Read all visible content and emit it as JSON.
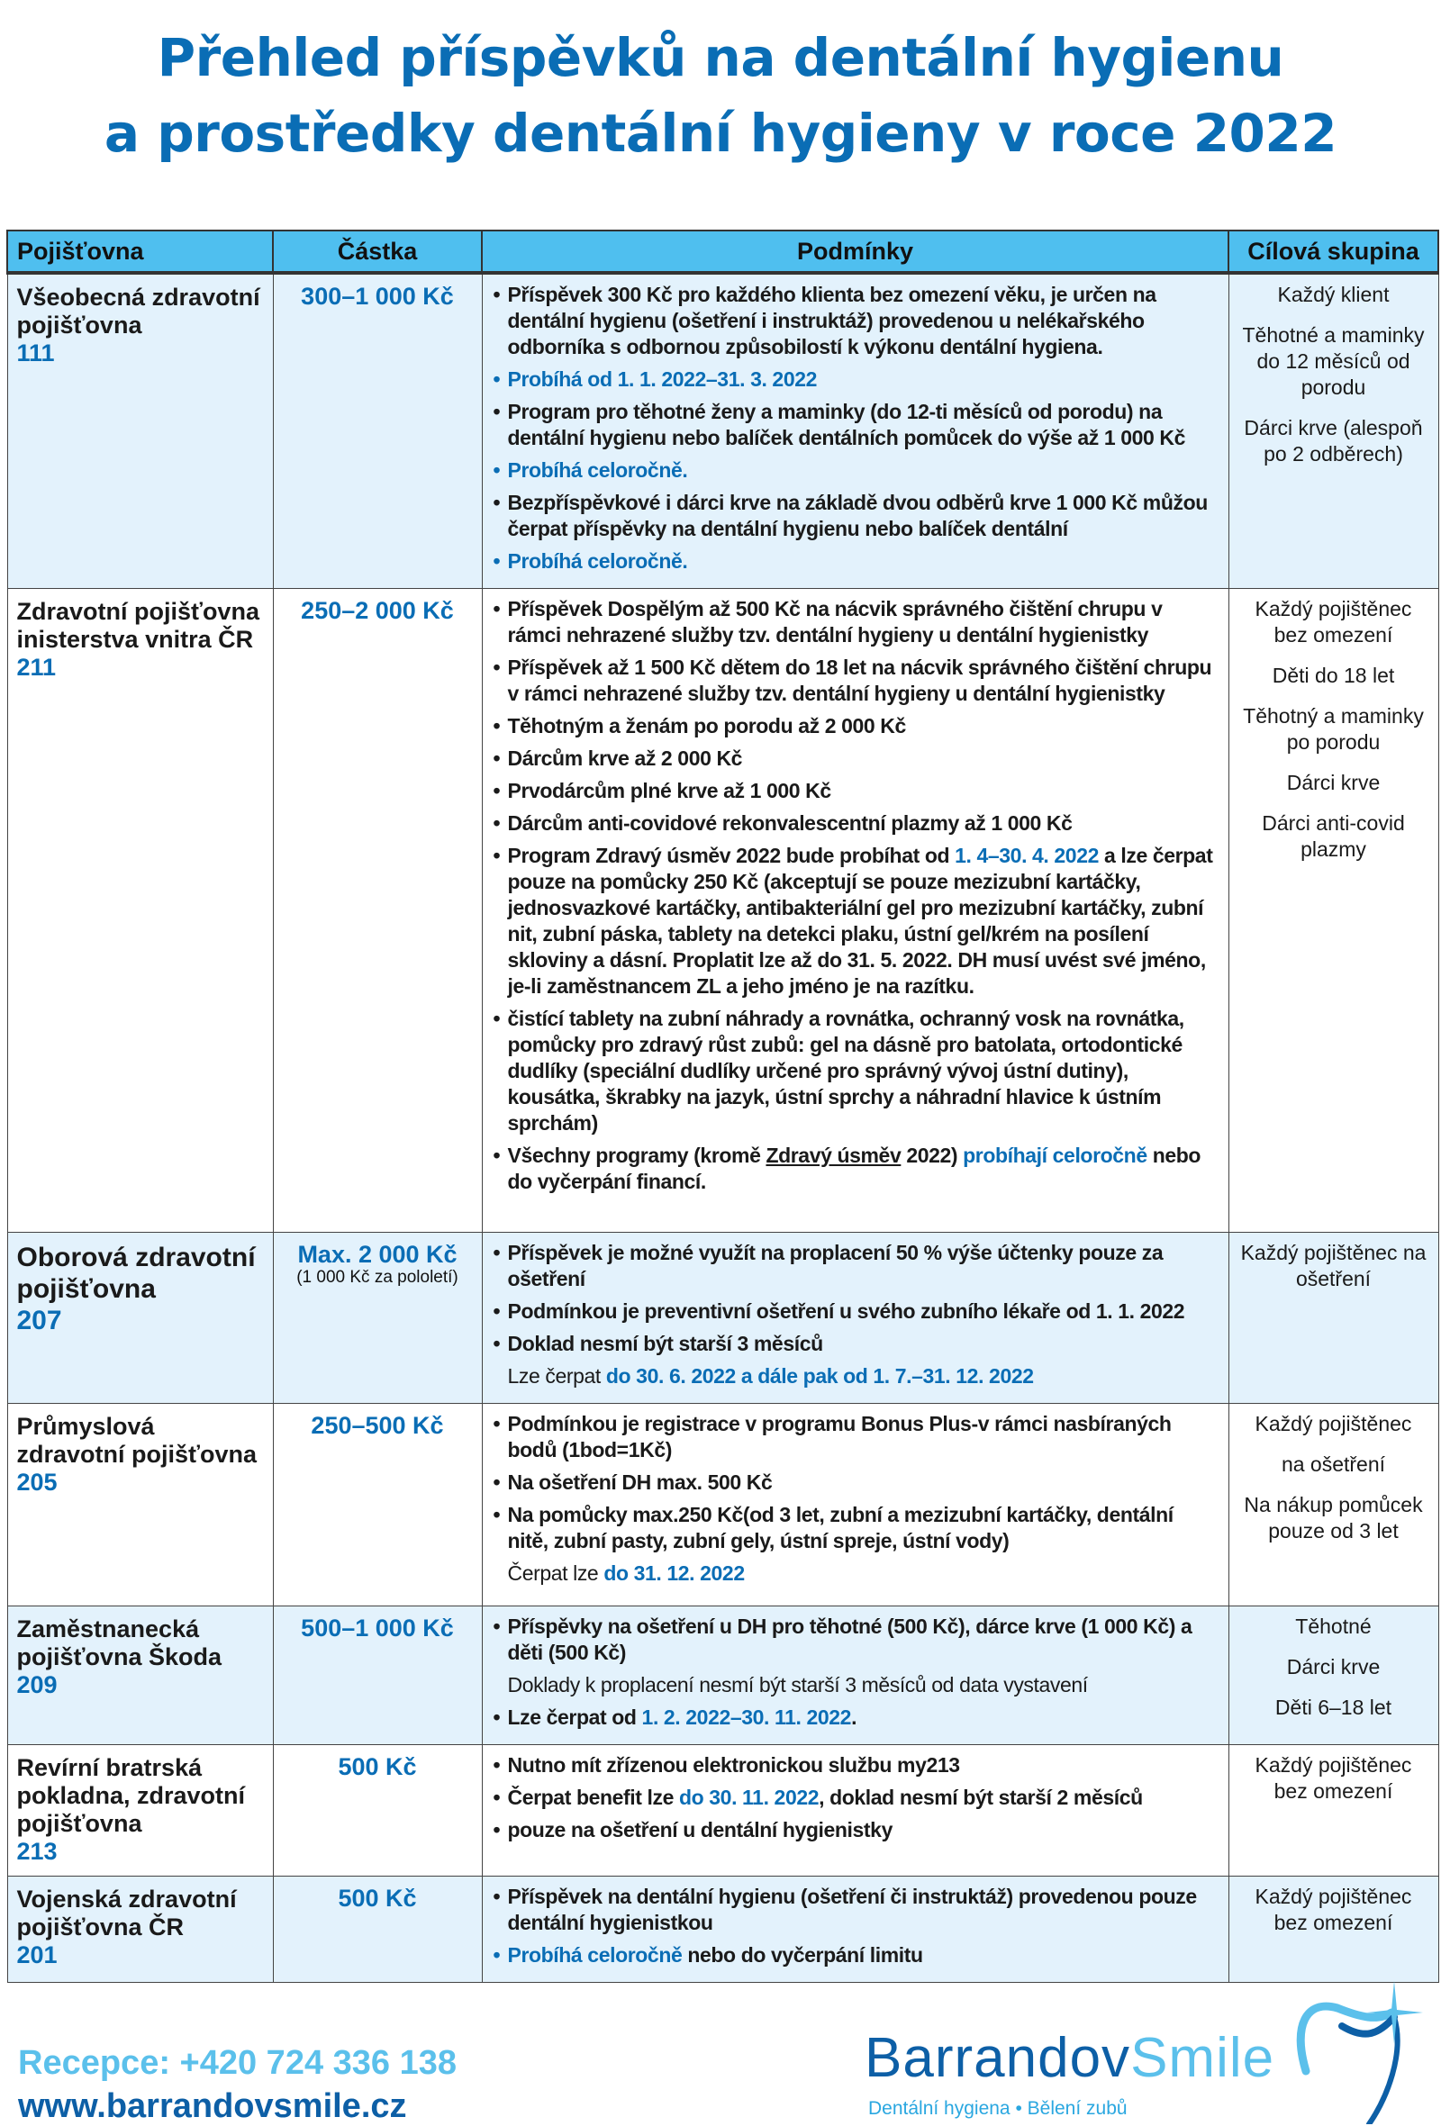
{
  "title": {
    "line1": "Přehled příspěvků na dentální hygienu",
    "line2": "a prostředky dentální hygieny v roce 2022"
  },
  "colors": {
    "title": "#0a6db5",
    "header": "#4fbfef",
    "row_shade": "#e3f2fc",
    "accent_blue": "#0a6db5",
    "light_blue": "#5bc0eb"
  },
  "table": {
    "headers": [
      "Pojišťovna",
      "Částka",
      "Podmínky",
      "Cílová skupina"
    ],
    "rows": [
      {
        "name": "Všeobecná zdravotní pojišťovna",
        "code": "111",
        "amount": "300–1 000 Kč",
        "amount_note": "",
        "conditions": [
          {
            "bullet": true,
            "parts": [
              {
                "t": "Příspěvek 300 Kč pro každého klienta bez omezení věku, je určen na dentální hygienu (ošetření i instruktáž) provedenou u nelékařského odborníka s odbornou způsobilostí k výkonu dentální hygiena."
              }
            ]
          },
          {
            "bullet": true,
            "parts": [
              {
                "t": "Probíhá od 1. 1. 2022–31. 3. 2022",
                "s": "blue"
              }
            ]
          },
          {
            "bullet": true,
            "parts": [
              {
                "t": "Program pro těhotné ženy a maminky (do 12-ti měsíců od porodu) na dentální hygienu nebo balíček dentálních pomůcek do výše až 1 000 Kč"
              }
            ]
          },
          {
            "bullet": true,
            "parts": [
              {
                "t": "Probíhá celoročně.",
                "s": "blue"
              }
            ]
          },
          {
            "bullet": true,
            "parts": [
              {
                "t": "Bezpříspěvkové",
                "s": "b"
              },
              {
                "t": " i "
              },
              {
                "t": "dárci krve",
                "s": "b"
              },
              {
                "t": " na základě dvou odběrů krve 1 000 Kč můžou čerpat příspěvky na dentální hygienu nebo balíček dentální"
              }
            ]
          },
          {
            "bullet": true,
            "parts": [
              {
                "t": "Probíhá celoročně.",
                "s": "blue"
              }
            ]
          }
        ],
        "target": [
          "Každý klient",
          "Těhotné a maminky do 12 měsíců od porodu",
          "Dárci krve (alespoň po 2 odběrech)"
        ]
      },
      {
        "name": "Zdravotní pojišťovna inisterstva vnitra ČR",
        "code": "211",
        "amount": "250–2 000 Kč",
        "amount_note": "",
        "conditions": [
          {
            "bullet": true,
            "parts": [
              {
                "t": "Příspěvek "
              },
              {
                "t": "Dospělým až 500",
                "s": "b"
              },
              {
                "t": " Kč na nácvik správného čištění chrupu v rámci nehrazené služby tzv. dentální hygieny u dentální hygienistky"
              }
            ]
          },
          {
            "bullet": true,
            "parts": [
              {
                "t": "Příspěvek až "
              },
              {
                "t": "1 500 Kč dětem do 18",
                "s": "b"
              },
              {
                "t": " let na nácvik správného čištění chrupu v rámci nehrazené služby tzv. dentální hygieny u dentální hygienistky"
              }
            ]
          },
          {
            "bullet": true,
            "parts": [
              {
                "t": "Těhotným a ženám po porodu až 2 000 Kč",
                "s": "b"
              }
            ]
          },
          {
            "bullet": true,
            "parts": [
              {
                "t": "Dárcům krve až 2 000 Kč",
                "s": "b"
              }
            ]
          },
          {
            "bullet": true,
            "parts": [
              {
                "t": "Prvodárcům plné krve až 1 000 Kč",
                "s": "b"
              }
            ]
          },
          {
            "bullet": true,
            "parts": [
              {
                "t": "Dárcům anti-covidové rekonvalescentní plazmy až 1 000 Kč",
                "s": "b"
              }
            ]
          },
          {
            "bullet": true,
            "parts": [
              {
                "t": "Program "
              },
              {
                "t": "Zdravý úsměv 2022",
                "s": "b"
              },
              {
                "t": " bude probíhat od "
              },
              {
                "t": "1. 4–30. 4. 2022",
                "s": "blue"
              },
              {
                "t": " a lze čerpat pouze na pomůcky "
              },
              {
                "t": "250 Kč",
                "s": "b"
              },
              {
                "t": " (akceptují se pouze mezizubní kartáčky, jednosvazkové kartáčky, antibakteriální gel pro mezizubní kartáčky, zubní nit, zubní páska, tablety na detekci plaku, ústní gel/krém na posílení skloviny a dásní. Proplatit lze až do 31. 5. 2022. DH musí uvést své jméno, je-li zaměstnancem ZL a jeho jméno je na razítku."
              }
            ]
          },
          {
            "bullet": true,
            "parts": [
              {
                "t": "čistící tablety na zubní náhrady a rovnátka, ochranný vosk na rovnátka, pomůcky pro zdravý růst zubů: gel na dásně pro batolata, ortodontické dudlíky (speciální dudlíky určené pro správný vývoj ústní dutiny), kousátka, škrabky na jazyk, ústní sprchy a náhradní hlavice k ústním sprchám)"
              }
            ]
          },
          {
            "bullet": true,
            "parts": [
              {
                "t": "Všechny programy (kromě "
              },
              {
                "t": "Zdravý úsměv",
                "s": "u"
              },
              {
                "t": " 2022) "
              },
              {
                "t": "probíhají celoročně",
                "s": "blue"
              },
              {
                "t": " nebo do vyčerpání financí."
              }
            ]
          }
        ],
        "target": [
          "Každý pojištěnec bez omezení",
          "Děti do 18 let",
          "Těhotný a maminky po porodu",
          "Dárci krve",
          "Dárci anti-covid plazmy"
        ]
      },
      {
        "name": "Oborová zdravotní pojišťovna",
        "code": "207",
        "amount": "Max. 2 000 Kč",
        "amount_note": "(1 000 Kč za pololetí)",
        "conditions": [
          {
            "bullet": true,
            "parts": [
              {
                "t": "Příspěvek je možné využít na proplacení 50 % výše účtenky pouze za ošetření"
              }
            ]
          },
          {
            "bullet": true,
            "parts": [
              {
                "t": "Podmínkou je preventivní ošetření u svého zubního lékaře od 1. 1. 2022"
              }
            ]
          },
          {
            "bullet": true,
            "parts": [
              {
                "t": "Doklad nesmí být starší 3 měsíců"
              }
            ]
          },
          {
            "bullet": false,
            "parts": [
              {
                "t": "Lze čerpat "
              },
              {
                "t": "do 30. 6. 2022 a dále pak od 1. 7.–31. 12. 2022",
                "s": "blue"
              }
            ]
          }
        ],
        "target": [
          "Každý pojištěnec na ošetření"
        ]
      },
      {
        "name": "Průmyslová zdravotní pojišťovna",
        "code": "205",
        "amount": "250–500 Kč",
        "amount_note": "",
        "conditions": [
          {
            "bullet": true,
            "parts": [
              {
                "t": "Podmínkou je registrace v programu Bonus Plus-v rámci nasbíraných bodů (1bod=1Kč)"
              }
            ]
          },
          {
            "bullet": true,
            "parts": [
              {
                "t": "Na ošetření DH max. 500 Kč"
              }
            ]
          },
          {
            "bullet": true,
            "parts": [
              {
                "t": "Na pomůcky max.250 Kč(od 3 let, zubní a mezizubní kartáčky, dentální nitě, zubní pasty, zubní gely, ústní spreje, ústní vody)"
              }
            ]
          },
          {
            "bullet": false,
            "parts": [
              {
                "t": "Čerpat lze "
              },
              {
                "t": "do 31. 12. 2022",
                "s": "blue"
              }
            ]
          }
        ],
        "target": [
          "Každý pojištěnec",
          "na ošetření",
          "Na nákup pomůcek pouze od 3 let"
        ]
      },
      {
        "name": "Zaměstnanecká pojišťovna Škoda",
        "code": "209",
        "amount": "500–1 000 Kč",
        "amount_note": "",
        "conditions": [
          {
            "bullet": true,
            "parts": [
              {
                "t": "Příspěvky na ošetření u DH pro "
              },
              {
                "t": "těhotné (500 Kč), dárce krve (1 000 Kč)",
                "s": "b"
              },
              {
                "t": " a "
              },
              {
                "t": "děti  (500 Kč)",
                "s": "b"
              }
            ]
          },
          {
            "bullet": false,
            "parts": [
              {
                "t": "Doklady k proplacení nesmí být starší 3 měsíců od data vystavení"
              }
            ]
          },
          {
            "bullet": true,
            "parts": [
              {
                "t": "Lze  čerpat od "
              },
              {
                "t": "1. 2. 2022–30. 11. 2022",
                "s": "blue"
              },
              {
                "t": "."
              }
            ]
          }
        ],
        "target": [
          "Těhotné",
          "Dárci krve",
          "Děti 6–18 let"
        ]
      },
      {
        "name": "Revírní bratrská pokladna, zdravotní pojišťovna",
        "code": "213",
        "amount": "500 Kč",
        "amount_note": "",
        "conditions": [
          {
            "bullet": true,
            "parts": [
              {
                "t": "Nutno mít zřízenou elektronickou službu "
              },
              {
                "t": "my213",
                "s": "b"
              }
            ]
          },
          {
            "bullet": true,
            "parts": [
              {
                "t": "Čerpat benefit lze "
              },
              {
                "t": "do 30. 11. 2022",
                "s": "blue"
              },
              {
                "t": ", doklad nesmí být starší 2 měsíců"
              }
            ]
          },
          {
            "bullet": true,
            "parts": [
              {
                "t": "pouze na ošetření u dentální hygienistky"
              }
            ]
          }
        ],
        "target": [
          "Každý pojištěnec bez omezení"
        ]
      },
      {
        "name": "Vojenská zdravotní pojišťovna ČR",
        "code": "201",
        "amount": "500 Kč",
        "amount_note": "",
        "conditions": [
          {
            "bullet": true,
            "parts": [
              {
                "t": "Příspěvek na dentální hygienu (ošetření či instruktáž) provedenou pouze dentální hygienistkou"
              }
            ]
          },
          {
            "bullet": true,
            "parts": [
              {
                "t": "Probíhá celoročně",
                "s": "blue"
              },
              {
                "t": " nebo do vyčerpání limitu"
              }
            ]
          }
        ],
        "target": [
          "Každý pojištěnec bez omezení"
        ]
      }
    ]
  },
  "footer": {
    "phone": "Recepce: +420 724 336 138",
    "website": "www.barrandovsmile.cz"
  },
  "logo": {
    "part1": "Barrandov",
    "part2": "Smile",
    "tagline": "Dentální hygiena • Bělení zubů"
  }
}
